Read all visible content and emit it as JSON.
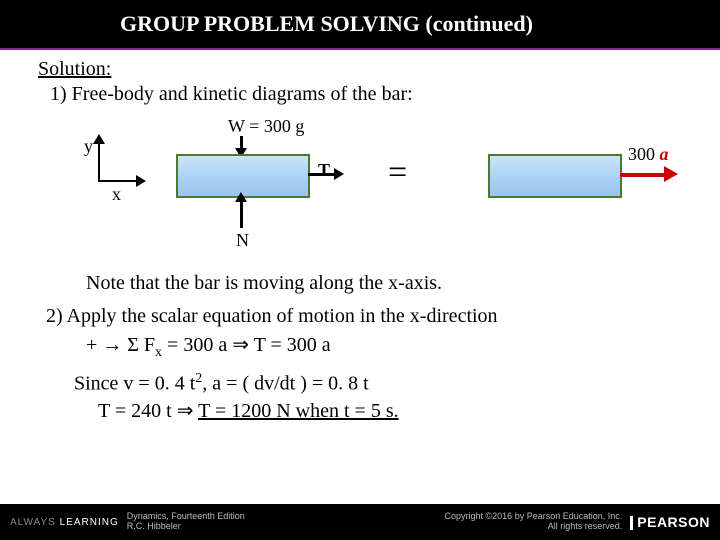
{
  "header": {
    "title": "GROUP  PROBLEM  SOLVING (continued)"
  },
  "solution": {
    "label": "Solution:",
    "step1": "1) Free-body and kinetic diagrams of the bar:",
    "step2": "2) Apply the scalar equation of motion in the x-direction",
    "note": "Note that the bar is moving along the x-axis."
  },
  "diagram": {
    "axes": {
      "y": "y",
      "x": "x"
    },
    "W_label": "W = 300 g",
    "T_label": "T",
    "N_label": "N",
    "equals": "=",
    "accel_prefix": "300 ",
    "accel_var": "a",
    "colors": {
      "bar_fill_top": "#c9e4fb",
      "bar_fill_bottom": "#9cc5ee",
      "bar_border": "#4a7a2e",
      "accel_arrow": "#cc0000"
    }
  },
  "equations": {
    "line1_prefix": "+ ",
    "line1_arrow": "→",
    "line1_sum": "  Σ F",
    "line1_sub": "x",
    "line1_rest": "  =  300 a  ⇒  T =  300 a",
    "since": "Since v = 0. 4 t",
    "since_sup": "2",
    "since_rest": ", a = ( dv/dt ) = 0. 8 t",
    "final_left": "T =  240 t ⇒  ",
    "final_underline": "T = 1200 N when t = 5 s."
  },
  "footer": {
    "always": "ALWAYS ",
    "learning": "LEARNING",
    "book": "Dynamics, Fourteenth Edition",
    "author": "R.C. Hibbeler",
    "copyright1": "Copyright ©2016 by Pearson Education, Inc.",
    "copyright2": "All rights reserved.",
    "brand": "PEARSON"
  }
}
